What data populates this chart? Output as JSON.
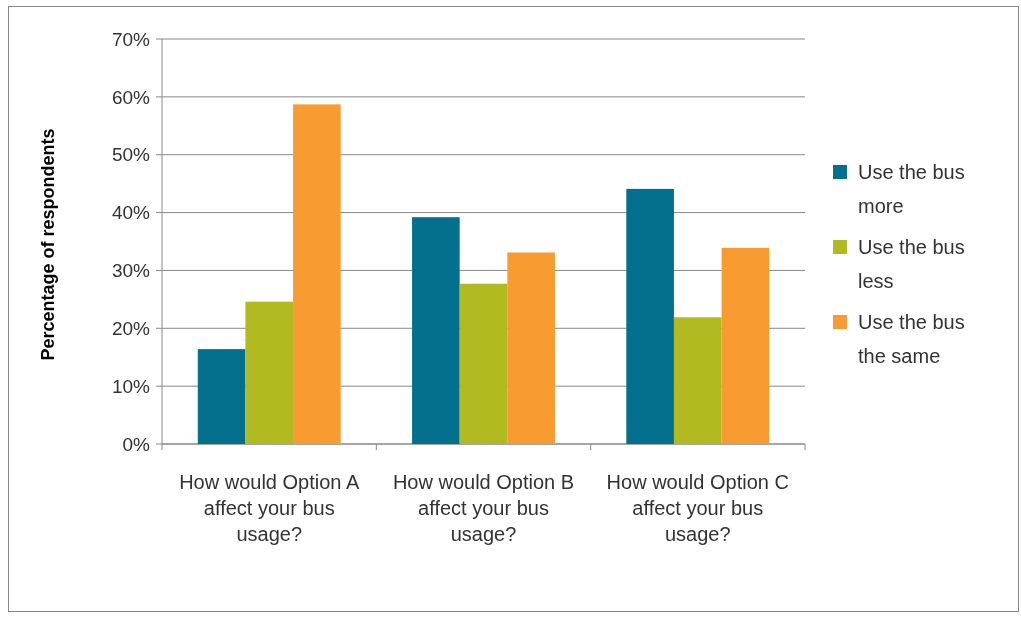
{
  "chart_data": {
    "type": "bar",
    "ylabel": "Percentage of respondents",
    "categories": [
      "How would Option A affect your bus usage?",
      "How would Option B affect your bus usage?",
      "How would Option C affect your bus usage?"
    ],
    "series": [
      {
        "name": "Use the bus more",
        "color": "#03708e",
        "values": [
          16.4,
          39.2,
          44.1
        ]
      },
      {
        "name": "Use the bus less",
        "color": "#b1ba20",
        "values": [
          24.6,
          27.7,
          21.9
        ]
      },
      {
        "name": "Use the bus the same",
        "color": "#f89c31",
        "values": [
          58.7,
          33.1,
          33.9
        ]
      }
    ],
    "ylim": [
      0,
      70
    ],
    "yticks": [
      {
        "value": 0,
        "label": "0%"
      },
      {
        "value": 10,
        "label": "10%"
      },
      {
        "value": 20,
        "label": "20%"
      },
      {
        "value": 30,
        "label": "30%"
      },
      {
        "value": 40,
        "label": "40%"
      },
      {
        "value": 50,
        "label": "50%"
      },
      {
        "value": 60,
        "label": "60%"
      },
      {
        "value": 70,
        "label": "70%"
      }
    ],
    "grid": "y",
    "legend": "right"
  }
}
